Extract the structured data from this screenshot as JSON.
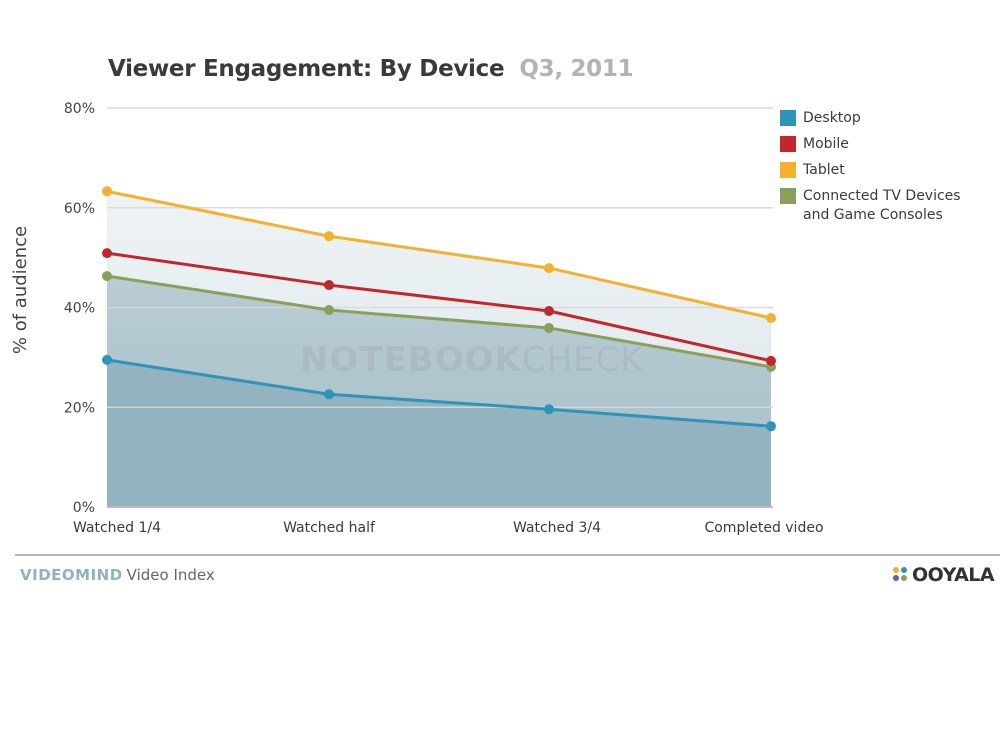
{
  "header": {
    "title": "Viewer Engagement: By Device",
    "subtitle": "Q3, 2011"
  },
  "watermark": {
    "bold": "NOTEBOOK",
    "light": "CHECK"
  },
  "footer": {
    "brand_strong": "VIDEOMIND",
    "brand_light": "Video Index",
    "logo": "OOYALA"
  },
  "colors": {
    "desktop": "#2e94b9",
    "mobile": "#c1272d",
    "tablet": "#f4b02f",
    "connected_tv": "#8aa05a",
    "area_dark": "#92b3bf",
    "area_light": "#e6eef1"
  },
  "chart_data": {
    "type": "line",
    "title": "Viewer Engagement: By Device",
    "subtitle": "Q3, 2011",
    "xlabel": "",
    "ylabel": "% of audience",
    "categories": [
      "Watched 1/4",
      "Watched half",
      "Watched 3/4",
      "Completed video"
    ],
    "ylim": [
      0,
      80
    ],
    "yticks": [
      0,
      20,
      40,
      60,
      80
    ],
    "ytick_labels": [
      "0%",
      "20%",
      "40%",
      "60%",
      "80%"
    ],
    "grid": true,
    "legend_position": "top-right",
    "series": [
      {
        "name": "Desktop",
        "key": "desktop",
        "values": [
          29.5,
          22.6,
          19.6,
          16.2
        ]
      },
      {
        "name": "Mobile",
        "key": "mobile",
        "values": [
          50.9,
          44.5,
          39.3,
          29.3
        ]
      },
      {
        "name": "Tablet",
        "key": "tablet",
        "values": [
          63.3,
          54.3,
          47.9,
          37.9
        ]
      },
      {
        "name": "Connected TV Devices and Game Consoles",
        "key": "connected_tv",
        "values": [
          46.3,
          39.5,
          35.9,
          28.1
        ]
      }
    ]
  }
}
